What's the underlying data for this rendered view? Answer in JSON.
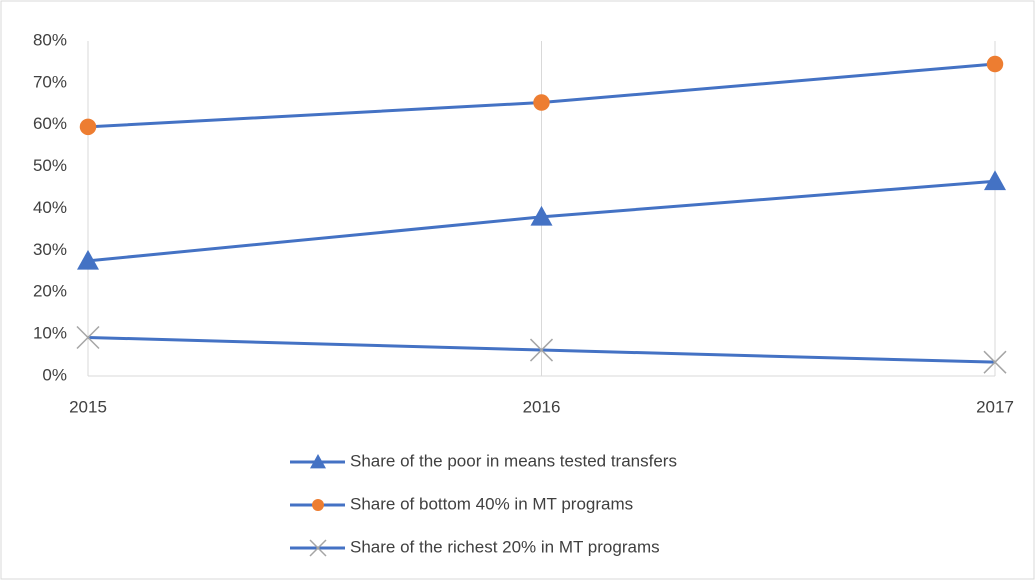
{
  "chart_data": {
    "type": "line",
    "x": [
      2015,
      2016,
      2017
    ],
    "xlim": [
      2015,
      2017
    ],
    "xticks": [
      2015,
      2016,
      2017
    ],
    "ylim": [
      0,
      80
    ],
    "yticks": [
      {
        "value": 0,
        "label": "0%"
      },
      {
        "value": 10,
        "label": "10%"
      },
      {
        "value": 20,
        "label": "20%"
      },
      {
        "value": 30,
        "label": "30%"
      },
      {
        "value": 40,
        "label": "40%"
      },
      {
        "value": 50,
        "label": "50%"
      },
      {
        "value": 60,
        "label": "60%"
      },
      {
        "value": 70,
        "label": "70%"
      },
      {
        "value": 80,
        "label": "80%"
      }
    ],
    "grid": "x",
    "legend": "bottom",
    "series": [
      {
        "name": "Share of the poor in means tested transfers",
        "color": "#4472c4",
        "marker": "triangle",
        "marker_color": "#4472c4",
        "values": [
          27.5,
          38,
          46.5
        ]
      },
      {
        "name": "Share of bottom 40% in MT programs",
        "color": "#4472c4",
        "marker": "circle",
        "marker_color": "#ed7d31",
        "values": [
          59.5,
          65.3,
          74.5
        ]
      },
      {
        "name": "Share of the richest 20% in MT programs",
        "color": "#4472c4",
        "marker": "x",
        "marker_color": "#a5a5a5",
        "values": [
          9.2,
          6.2,
          3.3
        ]
      }
    ]
  }
}
